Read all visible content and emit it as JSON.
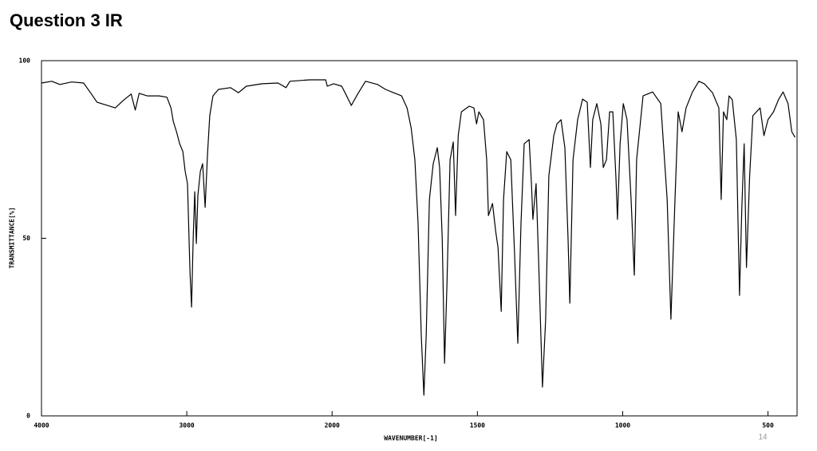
{
  "title": "Question 3 IR",
  "page_number": "14",
  "chart_data": {
    "type": "line",
    "xlabel": "WAVENUMBER[-1]",
    "ylabel": "TRANSMITTANCE[%]",
    "xlim": [
      4000,
      400
    ],
    "xticks": [
      4000,
      3000,
      2000,
      1500,
      1000,
      500
    ],
    "ylim": [
      0,
      100
    ],
    "yticks": [
      0,
      50,
      100
    ],
    "series": [
      {
        "name": null,
        "color": "#000000",
        "x": [
          4000,
          3929,
          3874,
          3792,
          3710,
          3656,
          3618,
          3546,
          3492,
          3437,
          3383,
          3355,
          3328,
          3273,
          3191,
          3137,
          3109,
          3093,
          3071,
          3049,
          3027,
          3011,
          2995,
          2978,
          2967,
          2956,
          2945,
          2934,
          2924,
          2907,
          2891,
          2874,
          2858,
          2842,
          2820,
          2782,
          2700,
          2645,
          2590,
          2481,
          2372,
          2317,
          2290,
          2153,
          2044,
          2033,
          1995,
          1967,
          1953,
          1934,
          1912,
          1885,
          1844,
          1816,
          1789,
          1761,
          1742,
          1728,
          1715,
          1704,
          1693,
          1684,
          1676,
          1665,
          1652,
          1638,
          1630,
          1621,
          1613,
          1605,
          1594,
          1583,
          1575,
          1566,
          1555,
          1528,
          1512,
          1503,
          1495,
          1479,
          1468,
          1462,
          1448,
          1437,
          1429,
          1418,
          1410,
          1399,
          1385,
          1372,
          1361,
          1350,
          1339,
          1322,
          1314,
          1309,
          1298,
          1289,
          1276,
          1265,
          1254,
          1237,
          1226,
          1212,
          1199,
          1188,
          1182,
          1171,
          1155,
          1138,
          1122,
          1111,
          1103,
          1089,
          1075,
          1067,
          1056,
          1045,
          1034,
          1023,
          1018,
          1009,
          998,
          985,
          971,
          960,
          952,
          930,
          897,
          869,
          847,
          834,
          820,
          809,
          796,
          782,
          760,
          738,
          719,
          691,
          669,
          661,
          653,
          642,
          634,
          623,
          609,
          598,
          590,
          582,
          574,
          563,
          552,
          527,
          514,
          500,
          481,
          464,
          448,
          431,
          418,
          407
        ],
        "values": [
          93.7,
          94.2,
          93.3,
          94,
          93.7,
          90.6,
          88.3,
          87.4,
          86.7,
          88.8,
          90.6,
          86.1,
          90.8,
          90.1,
          90.1,
          89.7,
          86.7,
          82.9,
          80,
          76.6,
          74.4,
          68.8,
          65.4,
          40.7,
          30.6,
          49.7,
          63.1,
          48.5,
          62,
          68.8,
          71,
          58.7,
          73.3,
          84.5,
          90.1,
          91.9,
          92.4,
          91,
          92.8,
          93.5,
          93.7,
          92.4,
          94.2,
          94.6,
          94.6,
          92.8,
          93.5,
          92.8,
          90.6,
          87.4,
          90.6,
          94.2,
          93.3,
          91.9,
          91,
          90.1,
          86.7,
          81.1,
          72.1,
          54.2,
          22.7,
          5.8,
          22.7,
          60.9,
          71,
          75.5,
          69.9,
          49.7,
          14.8,
          36.2,
          72.1,
          77.1,
          56.4,
          78.9,
          85.6,
          87.2,
          86.7,
          82.2,
          85.6,
          83.4,
          72.1,
          56.4,
          59.8,
          51.9,
          47.4,
          29.4,
          60.9,
          74.4,
          72.1,
          45.2,
          20.4,
          54.2,
          76.6,
          77.8,
          65.4,
          55.3,
          65.4,
          42.9,
          8.1,
          27.2,
          67.6,
          78.9,
          82.2,
          83.4,
          75.5,
          49.7,
          31.7,
          72.1,
          83.4,
          89.2,
          88.3,
          69.9,
          83.4,
          87.9,
          82.2,
          69.9,
          72.1,
          85.6,
          85.6,
          66.5,
          55.3,
          76.6,
          87.9,
          83.4,
          60.9,
          39.6,
          72.1,
          90.1,
          91.2,
          87.9,
          60.9,
          27.2,
          60.9,
          85.6,
          80,
          86.7,
          91.2,
          94.2,
          93.5,
          91,
          86.7,
          60.9,
          85.6,
          83.4,
          90.1,
          89,
          77.8,
          33.9,
          58.7,
          76.6,
          41.8,
          67.6,
          84.5,
          86.7,
          78.9,
          83.4,
          85.6,
          89,
          91.2,
          87.9,
          80,
          78.4
        ]
      }
    ]
  }
}
